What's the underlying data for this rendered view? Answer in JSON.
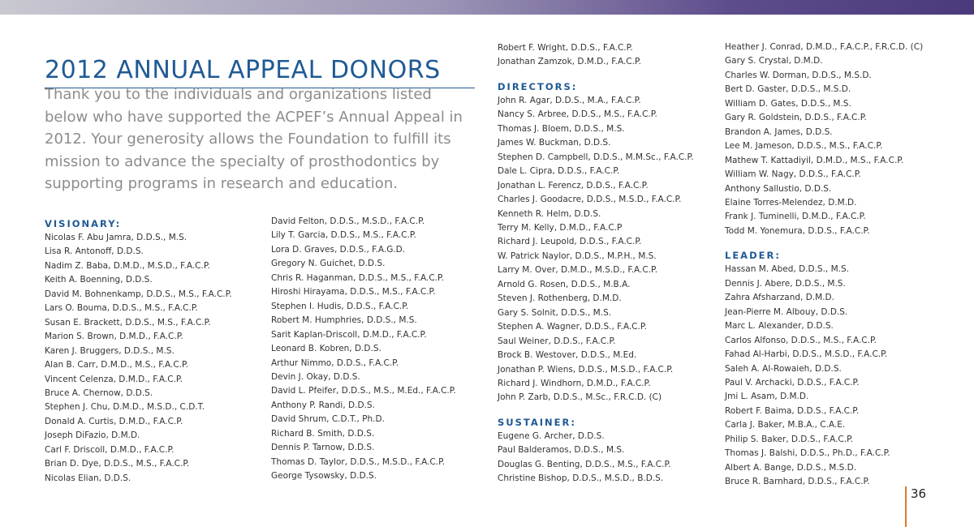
{
  "title": "2012 ANNUAL APPEAL DONORS",
  "intro": "Thank you to the individuals and organizations listed below who have supported the ACPEF’s Annual Appeal in 2012. Your generosity allows the Foundation to fulfill its mission to advance the specialty of prosthodontics by supporting programs in research and education.",
  "columns": [
    [
      {
        "heading": "VISIONARY:",
        "names": [
          "Nicolas F. Abu Jamra, D.D.S., M.S.",
          "Lisa R. Antonoff, D.D.S.",
          "Nadim Z. Baba, D.M.D., M.S.D., F.A.C.P.",
          "Keith A. Boenning, D.D.S.",
          "David M. Bohnenkamp, D.D.S., M.S., F.A.C.P.",
          "Lars O. Bouma, D.D.S., M.S., F.A.C.P.",
          "Susan E. Brackett, D.D.S., M.S., F.A.C.P.",
          "Marion S. Brown, D.M.D., F.A.C.P.",
          "Karen J. Bruggers, D.D.S., M.S.",
          "Alan B. Carr, D.M.D., M.S., F.A.C.P.",
          "Vincent Celenza, D.M.D., F.A.C.P.",
          "Bruce A. Chernow, D.D.S.",
          "Stephen J. Chu, D.M.D., M.S.D., C.D.T.",
          "Donald A. Curtis, D.M.D., F.A.C.P.",
          "Joseph DiFazio, D.M.D.",
          "Carl F. Driscoll, D.M.D., F.A.C.P.",
          "Brian D. Dye, D.D.S., M.S., F.A.C.P.",
          "Nicolas Elian, D.D.S."
        ]
      }
    ],
    [
      {
        "names": [
          "David Felton, D.D.S., M.S.D., F.A.C.P.",
          "Lily T. Garcia, D.D.S., M.S., F.A.C.P.",
          "Lora D. Graves, D.D.S., F.A.G.D.",
          "Gregory N. Guichet, D.D.S.",
          "Chris R. Haganman, D.D.S., M.S., F.A.C.P.",
          "Hiroshi Hirayama, D.D.S., M.S., F.A.C.P.",
          "Stephen I. Hudis, D.D.S., F.A.C.P.",
          "Robert M. Humphries, D.D.S., M.S.",
          "Sarit Kaplan-Driscoll, D.M.D., F.A.C.P.",
          "Leonard B. Kobren, D.D.S.",
          "Arthur Nimmo, D.D.S., F.A.C.P.",
          "Devin J. Okay, D.D.S.",
          "David L. Pfeifer, D.D.S., M.S., M.Ed., F.A.C.P.",
          "Anthony P. Randi, D.D.S.",
          "David Shrum, C.D.T., Ph.D.",
          "Richard B. Smith, D.D.S.",
          "Dennis P. Tarnow, D.D.S.",
          "Thomas D. Taylor, D.D.S., M.S.D., F.A.C.P.",
          "George Tysowsky, D.D.S."
        ]
      }
    ],
    [
      {
        "names": [
          "Robert F. Wright, D.D.S., F.A.C.P.",
          "Jonathan Zamzok, D.M.D., F.A.C.P."
        ]
      },
      {
        "heading": "DIRECTORS:",
        "names": [
          "John R. Agar, D.D.S., M.A., F.A.C.P.",
          "Nancy S. Arbree, D.D.S., M.S., F.A.C.P.",
          "Thomas J. Bloem, D.D.S., M.S.",
          "James W. Buckman, D.D.S.",
          "Stephen D. Campbell, D.D.S., M.M.Sc., F.A.C.P.",
          "Dale L. Cipra, D.D.S., F.A.C.P.",
          "Jonathan L. Ferencz, D.D.S., F.A.C.P.",
          "Charles J. Goodacre, D.D.S., M.S.D., F.A.C.P.",
          "Kenneth R. Helm, D.D.S.",
          "Terry M. Kelly, D.M.D., F.A.C.P",
          "Richard J. Leupold, D.D.S., F.A.C.P.",
          "W. Patrick Naylor, D.D.S., M.P.H., M.S.",
          "Larry M. Over, D.M.D., M.S.D., F.A.C.P.",
          "Arnold G. Rosen, D.D.S., M.B.A.",
          "Steven J. Rothenberg, D.M.D.",
          "Gary S. Solnit, D.D.S., M.S.",
          "Stephen A. Wagner, D.D.S., F.A.C.P.",
          "Saul Weiner, D.D.S., F.A.C.P.",
          "Brock B. Westover, D.D.S., M.Ed.",
          "Jonathan P. Wiens, D.D.S., M.S.D., F.A.C.P.",
          "Richard J. Windhorn, D.M.D., F.A.C.P.",
          "John P. Zarb, D.D.S., M.Sc., F.R.C.D. (C)"
        ]
      },
      {
        "heading": "SUSTAINER:",
        "names": [
          "Eugene G. Archer, D.D.S.",
          "Paul Balderamos, D.D.S., M.S.",
          "Douglas G. Benting, D.D.S., M.S., F.A.C.P.",
          "Christine Bishop, D.D.S., M.S.D., B.D.S."
        ]
      }
    ],
    [
      {
        "names": [
          "Heather J. Conrad, D.M.D., F.A.C.P., F.R.C.D. (C)",
          "Gary S. Crystal, D.M.D.",
          "Charles W. Dorman, D.D.S., M.S.D.",
          "Bert D. Gaster, D.D.S., M.S.D.",
          "William D. Gates, D.D.S., M.S.",
          "Gary R. Goldstein, D.D.S., F.A.C.P.",
          "Brandon A. James, D.D.S.",
          "Lee M. Jameson, D.D.S., M.S., F.A.C.P.",
          "Mathew T. Kattadiyil, D.M.D., M.S., F.A.C.P.",
          "William W. Nagy, D.D.S., F.A.C.P.",
          "Anthony Sallustio, D.D.S.",
          "Elaine Torres-Melendez, D.M.D.",
          "Frank J. Tuminelli, D.M.D., F.A.C.P.",
          "Todd M. Yonemura, D.D.S., F.A.C.P."
        ]
      },
      {
        "heading": "LEADER:",
        "names": [
          "Hassan M. Abed, D.D.S., M.S.",
          "Dennis J. Abere, D.D.S., M.S.",
          "Zahra Afsharzand, D.M.D.",
          "Jean-Pierre M. Albouy, D.D.S.",
          "Marc L. Alexander, D.D.S.",
          "Carlos Alfonso, D.D.S., M.S., F.A.C.P.",
          "Fahad Al-Harbi, D.D.S., M.S.D., F.A.C.P.",
          "Saleh A. Al-Rowaieh, D.D.S.",
          "Paul V. Archacki, D.D.S., F.A.C.P.",
          "Jmi L. Asam, D.M.D.",
          "Robert F. Baima, D.D.S., F.A.C.P.",
          "Carla J. Baker, M.B.A., C.A.E.",
          "Philip S. Baker, D.D.S., F.A.C.P.",
          "Thomas J. Balshi, D.D.S., Ph.D., F.A.C.P.",
          "Albert A. Bange, D.D.S., M.S.D.",
          "Bruce R. Barnhard, D.D.S., F.A.C.P."
        ]
      }
    ]
  ],
  "page_number": "36"
}
